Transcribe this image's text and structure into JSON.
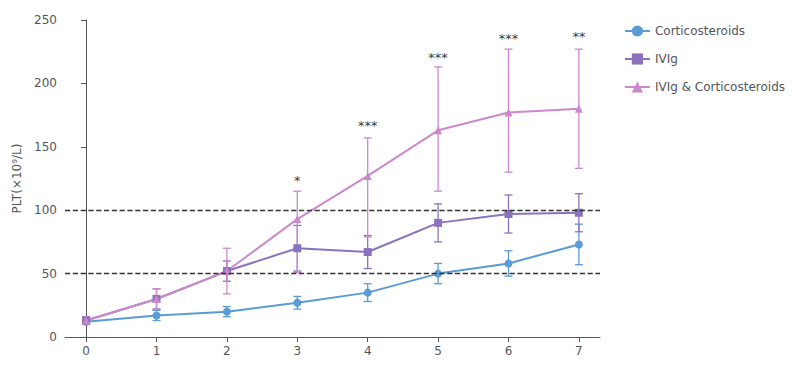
{
  "chart_data": {
    "type": "line",
    "x": [
      0,
      1,
      2,
      3,
      4,
      5,
      6,
      7
    ],
    "series": [
      {
        "name": "Corticosteroids",
        "color": "#5B9BD5",
        "marker": "circle",
        "values": [
          12,
          17,
          20,
          27,
          35,
          50,
          58,
          73
        ],
        "yerr_low": [
          2,
          4,
          4,
          5,
          7,
          8,
          10,
          16
        ],
        "yerr_high": [
          2,
          4,
          4,
          5,
          7,
          8,
          10,
          16
        ]
      },
      {
        "name": "IVIg",
        "color": "#8B72BE",
        "marker": "square",
        "values": [
          13,
          30,
          52,
          70,
          67,
          90,
          97,
          98
        ],
        "yerr_low": [
          3,
          8,
          8,
          18,
          13,
          15,
          15,
          15
        ],
        "yerr_high": [
          3,
          8,
          8,
          18,
          13,
          15,
          15,
          15
        ]
      },
      {
        "name": "IVIg & Corticosteroids",
        "color": "#CC88CC",
        "marker": "triangle",
        "values": [
          13,
          30,
          52,
          93,
          127,
          163,
          177,
          180
        ],
        "yerr_low": [
          3,
          8,
          18,
          42,
          48,
          48,
          47,
          47
        ],
        "yerr_high": [
          3,
          8,
          18,
          22,
          30,
          50,
          50,
          47
        ]
      }
    ],
    "annotations": [
      {
        "x": 3,
        "y": 118,
        "text": "*"
      },
      {
        "x": 4,
        "y": 162,
        "text": "***"
      },
      {
        "x": 5,
        "y": 215,
        "text": "***"
      },
      {
        "x": 6,
        "y": 230,
        "text": "***"
      },
      {
        "x": 7,
        "y": 232,
        "text": "**"
      }
    ],
    "hlines": [
      50,
      100
    ],
    "ylabel": "PLT(×10⁹/L)",
    "xlim": [
      -0.3,
      7.3
    ],
    "xticks": [
      0,
      1,
      2,
      3,
      4,
      5,
      6,
      7
    ],
    "ylim": [
      0,
      250
    ],
    "yticks": [
      0,
      50,
      100,
      150,
      200,
      250
    ],
    "grid": false,
    "legend": "right"
  }
}
